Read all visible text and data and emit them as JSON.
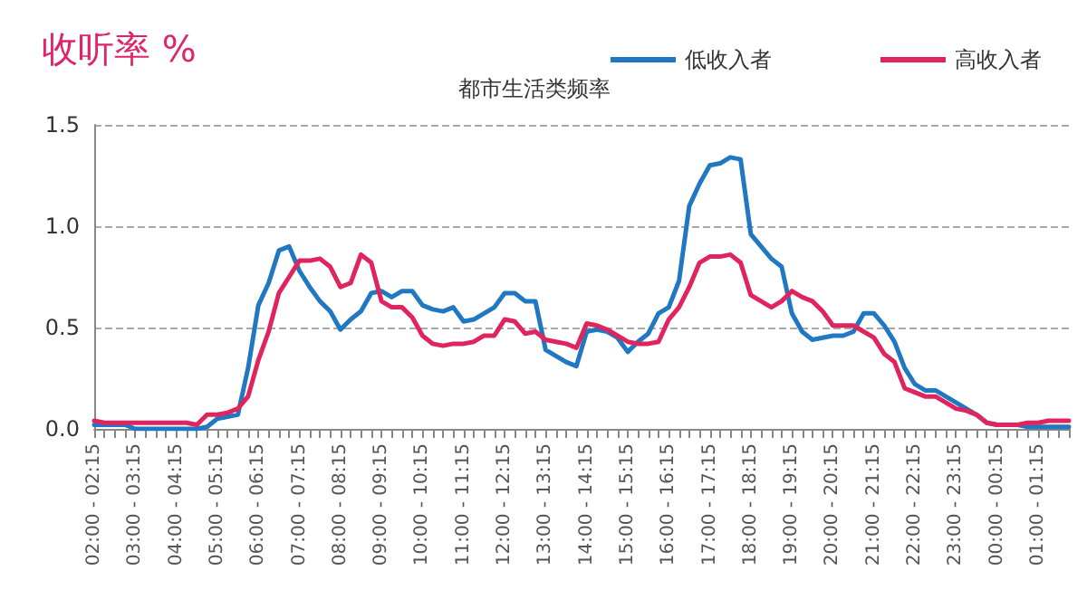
{
  "chart_data": {
    "type": "line",
    "title": "都市生活类频率",
    "ylabel": "收听率 %",
    "categories": [
      "02:00 - 02:15",
      null,
      null,
      null,
      "03:00 - 03:15",
      null,
      null,
      null,
      "04:00 - 04:15",
      null,
      null,
      null,
      "05:00 - 05:15",
      null,
      null,
      null,
      "06:00 - 06:15",
      null,
      null,
      null,
      "07:00 - 07:15",
      null,
      null,
      null,
      "08:00 - 08:15",
      null,
      null,
      null,
      "09:00 - 09:15",
      null,
      null,
      null,
      "10:00 - 10:15",
      null,
      null,
      null,
      "11:00 - 11:15",
      null,
      null,
      null,
      "12:00 - 12:15",
      null,
      null,
      null,
      "13:00 - 13:15",
      null,
      null,
      null,
      "14:00 - 14:15",
      null,
      null,
      null,
      "15:00 - 15:15",
      null,
      null,
      null,
      "16:00 - 16:15",
      null,
      null,
      null,
      "17:00 - 17:15",
      null,
      null,
      null,
      "18:00 - 18:15",
      null,
      null,
      null,
      "19:00 - 19:15",
      null,
      null,
      null,
      "20:00 - 20:15",
      null,
      null,
      null,
      "21:00 - 21:15",
      null,
      null,
      null,
      "22:00 - 22:15",
      null,
      null,
      null,
      "23:00 - 23:15",
      null,
      null,
      null,
      "00:00 - 00:15",
      null,
      null,
      null,
      "01:00 - 01:15",
      null,
      null,
      null
    ],
    "series": [
      {
        "name": "低收入者",
        "color": "#1f78c1",
        "values": [
          0.02,
          0.02,
          0.02,
          0.02,
          0,
          0,
          0,
          0,
          0,
          0,
          0,
          0.01,
          0.05,
          0.06,
          0.07,
          0.3,
          0.61,
          0.72,
          0.88,
          0.9,
          0.78,
          0.7,
          0.63,
          0.58,
          0.49,
          0.54,
          0.58,
          0.67,
          0.68,
          0.65,
          0.68,
          0.68,
          0.61,
          0.59,
          0.58,
          0.6,
          0.53,
          0.54,
          0.57,
          0.6,
          0.67,
          0.67,
          0.63,
          0.63,
          0.39,
          0.36,
          0.33,
          0.31,
          0.48,
          0.49,
          0.48,
          0.45,
          0.38,
          0.43,
          0.47,
          0.57,
          0.6,
          0.73,
          1.1,
          1.21,
          1.3,
          1.31,
          1.34,
          1.33,
          0.96,
          0.9,
          0.84,
          0.8,
          0.57,
          0.48,
          0.44,
          0.45,
          0.46,
          0.46,
          0.48,
          0.57,
          0.57,
          0.51,
          0.43,
          0.3,
          0.22,
          0.19,
          0.19,
          0.16,
          0.13,
          0.1,
          0.07,
          0.03,
          0.02,
          0.02,
          0.02,
          0.01,
          0.01,
          0.01,
          0.01,
          0.01
        ]
      },
      {
        "name": "高收入者",
        "color": "#e0245e",
        "values": [
          0.04,
          0.03,
          0.03,
          0.03,
          0.03,
          0.03,
          0.03,
          0.03,
          0.03,
          0.03,
          0.02,
          0.07,
          0.07,
          0.08,
          0.1,
          0.16,
          0.34,
          0.48,
          0.67,
          0.75,
          0.83,
          0.83,
          0.84,
          0.8,
          0.7,
          0.72,
          0.86,
          0.82,
          0.63,
          0.6,
          0.6,
          0.55,
          0.46,
          0.42,
          0.41,
          0.42,
          0.42,
          0.43,
          0.46,
          0.46,
          0.54,
          0.53,
          0.47,
          0.48,
          0.44,
          0.43,
          0.42,
          0.4,
          0.52,
          0.51,
          0.49,
          0.46,
          0.43,
          0.42,
          0.42,
          0.43,
          0.54,
          0.6,
          0.7,
          0.82,
          0.85,
          0.85,
          0.86,
          0.82,
          0.66,
          0.63,
          0.6,
          0.63,
          0.68,
          0.65,
          0.63,
          0.58,
          0.51,
          0.51,
          0.51,
          0.48,
          0.45,
          0.37,
          0.33,
          0.2,
          0.18,
          0.16,
          0.16,
          0.13,
          0.1,
          0.09,
          0.07,
          0.03,
          0.02,
          0.02,
          0.02,
          0.03,
          0.03,
          0.04,
          0.04,
          0.04
        ]
      }
    ],
    "ylim": [
      0,
      1.5
    ],
    "yticks": [
      {
        "value": 0,
        "label": "0.0"
      },
      {
        "value": 0.5,
        "label": "0.5"
      },
      {
        "value": 1,
        "label": "1.0"
      },
      {
        "value": 1.5,
        "label": "1.5"
      }
    ],
    "grid": "y",
    "legend": "top right",
    "marker": "none",
    "line_style": "solid"
  }
}
